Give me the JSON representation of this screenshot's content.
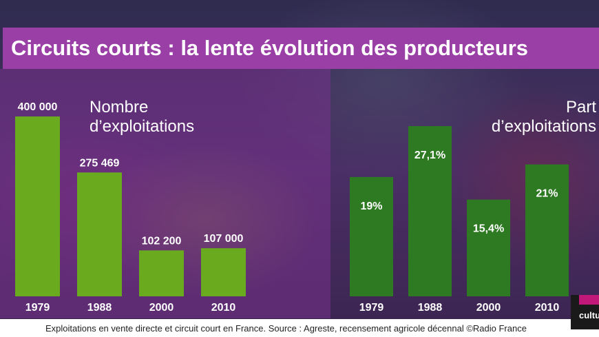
{
  "title": "Circuits courts : la lente évolution des producteurs",
  "footer": "Exploitations en vente directe et circuit court en France. Source : Agreste, recensement agricole décennal  ©Radio France",
  "logo": {
    "text": "cultu"
  },
  "colors": {
    "title_bg": "#9a3fa6",
    "left_bars": "#6aaa1e",
    "right_bars": "#2e7a22"
  },
  "chart_data": [
    {
      "type": "bar",
      "title": "Nombre d’exploitations",
      "title_lines": [
        "Nombre",
        "d’exploitations"
      ],
      "categories": [
        "1979",
        "1988",
        "2000",
        "2010"
      ],
      "values": [
        400000,
        275469,
        102200,
        107000
      ],
      "value_labels": [
        "400 000",
        "275 469",
        "102 200",
        "107 000"
      ],
      "ylim": [
        0,
        400000
      ],
      "label_position": "above"
    },
    {
      "type": "bar",
      "title": "Part d’exploitations",
      "title_lines": [
        "Part",
        "d’exploitations"
      ],
      "categories": [
        "1979",
        "1988",
        "2000",
        "2010"
      ],
      "values": [
        19,
        27.1,
        15.4,
        21
      ],
      "value_labels": [
        "19%",
        "27,1%",
        "15,4%",
        "21%"
      ],
      "ylim": [
        0,
        27.1
      ],
      "label_position": "inside"
    }
  ]
}
